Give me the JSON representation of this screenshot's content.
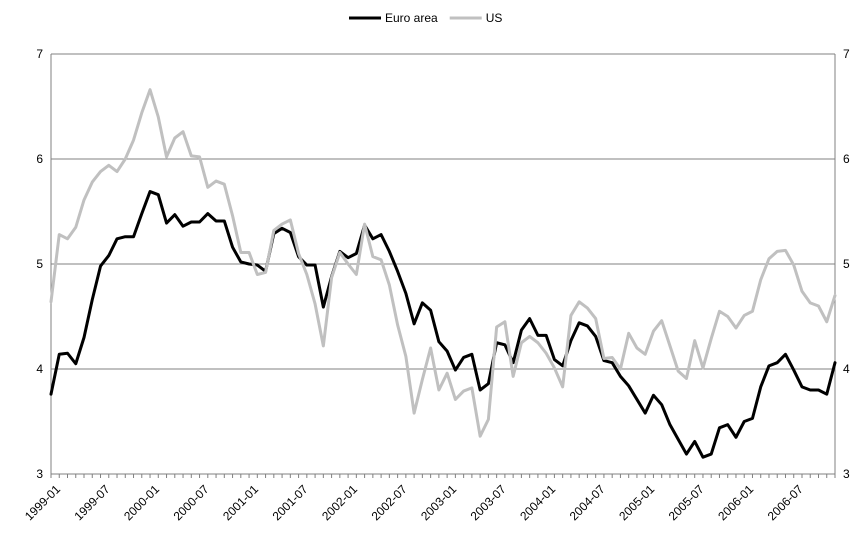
{
  "chart_data": {
    "type": "line",
    "title": "",
    "xlabel": "",
    "ylabel": "",
    "ylim": [
      3,
      7
    ],
    "y_ticks": [
      "3",
      "4",
      "5",
      "6",
      "7"
    ],
    "y_axis_right": true,
    "grid": "horizontal",
    "legend": "top",
    "x_tick_labels": [
      "1999-01",
      "1999-07",
      "2000-01",
      "2000-07",
      "2001-01",
      "2001-07",
      "2002-01",
      "2002-07",
      "2003-01",
      "2003-07",
      "2004-01",
      "2004-07",
      "2005-01",
      "2005-07",
      "2006-01",
      "2006-07"
    ],
    "x_tick_every_months": 6,
    "start": "1999-01",
    "series": [
      {
        "name": "Euro area",
        "color": "#000000",
        "values": [
          3.76,
          4.14,
          4.15,
          4.05,
          4.3,
          4.66,
          4.98,
          5.08,
          5.24,
          5.26,
          5.26,
          5.48,
          5.69,
          5.66,
          5.39,
          5.47,
          5.36,
          5.4,
          5.4,
          5.48,
          5.41,
          5.41,
          5.16,
          5.02,
          5.0,
          4.99,
          4.93,
          5.29,
          5.34,
          5.3,
          5.07,
          4.99,
          4.99,
          4.59,
          4.88,
          5.12,
          5.06,
          5.1,
          5.37,
          5.24,
          5.28,
          5.12,
          4.93,
          4.72,
          4.43,
          4.63,
          4.56,
          4.26,
          4.17,
          3.99,
          4.11,
          4.14,
          3.8,
          3.86,
          4.25,
          4.23,
          4.06,
          4.37,
          4.48,
          4.32,
          4.32,
          4.09,
          4.03,
          4.27,
          4.44,
          4.41,
          4.31,
          4.08,
          4.06,
          3.93,
          3.84,
          3.71,
          3.58,
          3.75,
          3.66,
          3.47,
          3.33,
          3.19,
          3.31,
          3.16,
          3.19,
          3.44,
          3.47,
          3.35,
          3.5,
          3.53,
          3.83,
          4.03,
          4.06,
          4.14,
          3.99,
          3.83,
          3.8,
          3.8,
          3.76,
          4.06
        ]
      },
      {
        "name": "US",
        "color": "#c0c0c0",
        "values": [
          4.64,
          5.28,
          5.24,
          5.35,
          5.61,
          5.78,
          5.88,
          5.94,
          5.88,
          6.0,
          6.18,
          6.44,
          6.66,
          6.4,
          6.02,
          6.2,
          6.26,
          6.03,
          6.02,
          5.73,
          5.79,
          5.76,
          5.46,
          5.11,
          5.11,
          4.9,
          4.92,
          5.32,
          5.38,
          5.42,
          5.1,
          4.9,
          4.62,
          4.22,
          4.87,
          5.11,
          5.0,
          4.9,
          5.38,
          5.07,
          5.04,
          4.8,
          4.42,
          4.12,
          3.58,
          3.9,
          4.2,
          3.8,
          3.96,
          3.71,
          3.79,
          3.82,
          3.36,
          3.52,
          4.4,
          4.45,
          3.93,
          4.25,
          4.31,
          4.25,
          4.15,
          4.01,
          3.83,
          4.51,
          4.64,
          4.58,
          4.48,
          4.1,
          4.11,
          4.0,
          4.34,
          4.2,
          4.14,
          4.36,
          4.46,
          4.22,
          3.98,
          3.91,
          4.27,
          4.01,
          4.29,
          4.55,
          4.5,
          4.39,
          4.51,
          4.55,
          4.85,
          5.05,
          5.12,
          5.13,
          4.99,
          4.74,
          4.63,
          4.6,
          4.45,
          4.7
        ]
      }
    ]
  }
}
